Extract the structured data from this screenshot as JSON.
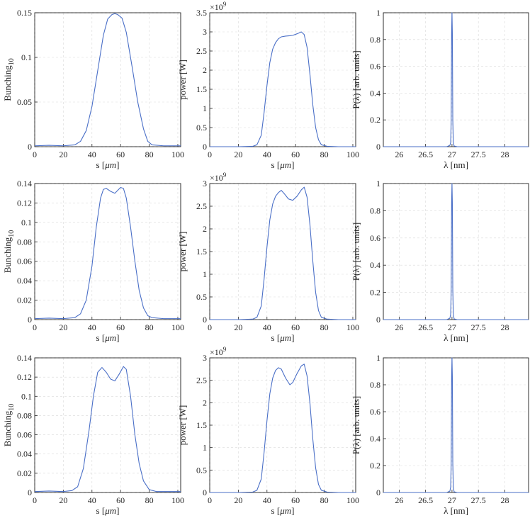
{
  "chart_data": [
    {
      "type": "line",
      "row": 0,
      "col": 0,
      "xlabel_prefix": "s [",
      "xlabel_unit": "μm",
      "xlabel_suffix": "]",
      "ylabel_base": "Bunching",
      "ylabel_sub": "10",
      "xlim": [
        0,
        102
      ],
      "ylim": [
        0,
        0.15
      ],
      "xticks": [
        0,
        20,
        40,
        60,
        80,
        100
      ],
      "yticks": [
        0,
        0.05,
        0.1,
        0.15
      ],
      "yticklabels": [
        "0",
        "0.05",
        "0.1",
        "0.15"
      ],
      "exponent": "",
      "grid": true,
      "series": [
        {
          "x": [
            0,
            10,
            20,
            28,
            32,
            36,
            40,
            44,
            48,
            51,
            54,
            56,
            58,
            61,
            64,
            68,
            72,
            76,
            79,
            82,
            90,
            102
          ],
          "y": [
            0.001,
            0.0015,
            0.001,
            0.002,
            0.006,
            0.018,
            0.045,
            0.085,
            0.125,
            0.143,
            0.148,
            0.149,
            0.148,
            0.144,
            0.128,
            0.09,
            0.05,
            0.02,
            0.006,
            0.002,
            0.001,
            0.001
          ]
        }
      ]
    },
    {
      "type": "line",
      "row": 0,
      "col": 1,
      "xlabel_prefix": "s [",
      "xlabel_unit": "μm",
      "xlabel_suffix": "]",
      "ylabel_base": "power [W]",
      "ylabel_sub": "",
      "xlim": [
        0,
        102
      ],
      "ylim": [
        0,
        3.5
      ],
      "xticks": [
        0,
        20,
        40,
        60,
        80,
        100
      ],
      "yticks": [
        0,
        0.5,
        1,
        1.5,
        2,
        2.5,
        3,
        3.5
      ],
      "yticklabels": [
        "0",
        "0.5",
        "1",
        "1.5",
        "2",
        "2.5",
        "3",
        "3.5"
      ],
      "exponent": "9",
      "grid": true,
      "series": [
        {
          "x": [
            0,
            10,
            20,
            30,
            33,
            36,
            38,
            40,
            42,
            44,
            46,
            48,
            50,
            53,
            56,
            58,
            61,
            64,
            66,
            68,
            70,
            72,
            74,
            76,
            78,
            82,
            90,
            102
          ],
          "y": [
            0,
            0,
            0,
            0.01,
            0.05,
            0.3,
            0.9,
            1.6,
            2.2,
            2.55,
            2.72,
            2.82,
            2.87,
            2.89,
            2.9,
            2.91,
            2.95,
            3.0,
            2.93,
            2.6,
            1.9,
            1.1,
            0.5,
            0.18,
            0.05,
            0.01,
            0,
            0
          ]
        }
      ]
    },
    {
      "type": "line",
      "row": 0,
      "col": 2,
      "xlabel_prefix": "λ [nm]",
      "xlabel_unit": "",
      "xlabel_suffix": "",
      "ylabel_base": "P(λ) [arb. units]",
      "ylabel_sub": "",
      "xlim": [
        25.7,
        28.45
      ],
      "ylim": [
        0,
        1
      ],
      "xticks": [
        26,
        26.5,
        27,
        27.5,
        28
      ],
      "yticks": [
        0,
        0.2,
        0.4,
        0.6,
        0.8,
        1
      ],
      "yticklabels": [
        "0",
        "0.2",
        "0.4",
        "0.6",
        "0.8",
        "1"
      ],
      "exponent": "",
      "grid": true,
      "series": [
        {
          "x": [
            25.7,
            26.9,
            26.96,
            26.975,
            26.985,
            26.993,
            27.0,
            27.007,
            27.015,
            27.025,
            27.04,
            27.1,
            28.45
          ],
          "y": [
            0,
            0,
            0.01,
            0.03,
            0.2,
            0.85,
            1.0,
            0.85,
            0.2,
            0.03,
            0.005,
            0,
            0
          ]
        }
      ]
    },
    {
      "type": "line",
      "row": 1,
      "col": 0,
      "xlabel_prefix": "s [",
      "xlabel_unit": "μm",
      "xlabel_suffix": "]",
      "ylabel_base": "Bunching",
      "ylabel_sub": "10",
      "xlim": [
        0,
        102
      ],
      "ylim": [
        0,
        0.14
      ],
      "xticks": [
        0,
        20,
        40,
        60,
        80,
        100
      ],
      "yticks": [
        0,
        0.02,
        0.04,
        0.06,
        0.08,
        0.1,
        0.12,
        0.14
      ],
      "yticklabels": [
        "0",
        "0.02",
        "0.04",
        "0.06",
        "0.08",
        "0.1",
        "0.12",
        "0.14"
      ],
      "exponent": "",
      "grid": true,
      "series": [
        {
          "x": [
            0,
            10,
            20,
            28,
            32,
            36,
            40,
            43,
            46,
            48,
            50,
            53,
            56,
            58,
            60,
            62,
            64,
            67,
            70,
            73,
            76,
            79,
            82,
            90,
            102
          ],
          "y": [
            0.001,
            0.0015,
            0.001,
            0.002,
            0.006,
            0.02,
            0.055,
            0.095,
            0.125,
            0.134,
            0.135,
            0.132,
            0.13,
            0.133,
            0.136,
            0.135,
            0.125,
            0.095,
            0.06,
            0.03,
            0.012,
            0.004,
            0.002,
            0.001,
            0.001
          ]
        }
      ]
    },
    {
      "type": "line",
      "row": 1,
      "col": 1,
      "xlabel_prefix": "s [",
      "xlabel_unit": "μm",
      "xlabel_suffix": "]",
      "ylabel_base": "power [W]",
      "ylabel_sub": "",
      "xlim": [
        0,
        102
      ],
      "ylim": [
        0,
        3
      ],
      "xticks": [
        0,
        20,
        40,
        60,
        80,
        100
      ],
      "yticks": [
        0,
        0.5,
        1,
        1.5,
        2,
        2.5,
        3
      ],
      "yticklabels": [
        "0",
        "0.5",
        "1",
        "1.5",
        "2",
        "2.5",
        "3"
      ],
      "exponent": "9",
      "grid": true,
      "series": [
        {
          "x": [
            0,
            10,
            20,
            30,
            33,
            36,
            38,
            40,
            42,
            44,
            46,
            48,
            50,
            52,
            55,
            58,
            61,
            64,
            66,
            68,
            70,
            72,
            74,
            76,
            78,
            82,
            90,
            102
          ],
          "y": [
            0,
            0,
            0,
            0.01,
            0.05,
            0.3,
            0.9,
            1.6,
            2.2,
            2.55,
            2.72,
            2.8,
            2.85,
            2.78,
            2.66,
            2.63,
            2.72,
            2.86,
            2.92,
            2.7,
            2.1,
            1.3,
            0.6,
            0.2,
            0.05,
            0.01,
            0,
            0
          ]
        }
      ]
    },
    {
      "type": "line",
      "row": 1,
      "col": 2,
      "xlabel_prefix": "λ [nm]",
      "xlabel_unit": "",
      "xlabel_suffix": "",
      "ylabel_base": "P(λ) [arb. units]",
      "ylabel_sub": "",
      "xlim": [
        25.7,
        28.45
      ],
      "ylim": [
        0,
        1
      ],
      "xticks": [
        26,
        26.5,
        27,
        27.5,
        28
      ],
      "yticks": [
        0,
        0.2,
        0.4,
        0.6,
        0.8,
        1
      ],
      "yticklabels": [
        "0",
        "0.2",
        "0.4",
        "0.6",
        "0.8",
        "1"
      ],
      "exponent": "",
      "grid": true,
      "series": [
        {
          "x": [
            25.7,
            26.9,
            26.96,
            26.975,
            26.985,
            26.993,
            27.0,
            27.007,
            27.015,
            27.025,
            27.04,
            27.1,
            28.45
          ],
          "y": [
            0,
            0,
            0.01,
            0.04,
            0.22,
            0.86,
            1.0,
            0.86,
            0.22,
            0.04,
            0.005,
            0,
            0
          ]
        }
      ]
    },
    {
      "type": "line",
      "row": 2,
      "col": 0,
      "xlabel_prefix": "s [",
      "xlabel_unit": "μm",
      "xlabel_suffix": "]",
      "ylabel_base": "Bunching",
      "ylabel_sub": "10",
      "xlim": [
        0,
        102
      ],
      "ylim": [
        0,
        0.14
      ],
      "xticks": [
        0,
        20,
        40,
        60,
        80,
        100
      ],
      "yticks": [
        0,
        0.02,
        0.04,
        0.06,
        0.08,
        0.1,
        0.12,
        0.14
      ],
      "yticklabels": [
        "0",
        "0.02",
        "0.04",
        "0.06",
        "0.08",
        "0.1",
        "0.12",
        "0.14"
      ],
      "exponent": "",
      "grid": true,
      "series": [
        {
          "x": [
            0,
            10,
            20,
            26,
            30,
            34,
            38,
            41,
            44,
            47,
            50,
            53,
            56,
            59,
            62,
            64,
            67,
            70,
            73,
            76,
            80,
            85,
            90,
            102
          ],
          "y": [
            0.001,
            0.0015,
            0.001,
            0.002,
            0.006,
            0.025,
            0.065,
            0.1,
            0.125,
            0.13,
            0.125,
            0.118,
            0.116,
            0.123,
            0.131,
            0.128,
            0.1,
            0.06,
            0.03,
            0.012,
            0.003,
            0.001,
            0.001,
            0.001
          ]
        }
      ]
    },
    {
      "type": "line",
      "row": 2,
      "col": 1,
      "xlabel_prefix": "s [",
      "xlabel_unit": "μm",
      "xlabel_suffix": "]",
      "ylabel_base": "power [W]",
      "ylabel_sub": "",
      "xlim": [
        0,
        102
      ],
      "ylim": [
        0,
        3
      ],
      "xticks": [
        0,
        20,
        40,
        60,
        80,
        100
      ],
      "yticks": [
        0,
        0.5,
        1,
        1.5,
        2,
        2.5,
        3
      ],
      "yticklabels": [
        "0",
        "0.5",
        "1",
        "1.5",
        "2",
        "2.5",
        "3"
      ],
      "exponent": "9",
      "grid": true,
      "series": [
        {
          "x": [
            0,
            10,
            20,
            30,
            33,
            36,
            38,
            40,
            42,
            44,
            46,
            48,
            50,
            53,
            56,
            58,
            61,
            64,
            66,
            68,
            70,
            72,
            74,
            76,
            78,
            82,
            90,
            102
          ],
          "y": [
            0,
            0,
            0,
            0.01,
            0.05,
            0.3,
            0.9,
            1.6,
            2.2,
            2.55,
            2.72,
            2.78,
            2.75,
            2.55,
            2.4,
            2.45,
            2.65,
            2.82,
            2.86,
            2.6,
            2.0,
            1.2,
            0.55,
            0.18,
            0.05,
            0.01,
            0,
            0
          ]
        }
      ]
    },
    {
      "type": "line",
      "row": 2,
      "col": 2,
      "xlabel_prefix": "λ [nm]",
      "xlabel_unit": "",
      "xlabel_suffix": "",
      "ylabel_base": "P(λ) [arb. units]",
      "ylabel_sub": "",
      "xlim": [
        25.7,
        28.45
      ],
      "ylim": [
        0,
        1
      ],
      "xticks": [
        26,
        26.5,
        27,
        27.5,
        28
      ],
      "yticks": [
        0,
        0.2,
        0.4,
        0.6,
        0.8,
        1
      ],
      "yticklabels": [
        "0",
        "0.2",
        "0.4",
        "0.6",
        "0.8",
        "1"
      ],
      "exponent": "",
      "grid": true,
      "series": [
        {
          "x": [
            25.7,
            26.9,
            26.96,
            26.975,
            26.985,
            26.993,
            27.0,
            27.007,
            27.015,
            27.025,
            27.04,
            27.1,
            28.45
          ],
          "y": [
            0,
            0,
            0.01,
            0.04,
            0.22,
            0.86,
            1.0,
            0.86,
            0.22,
            0.04,
            0.005,
            0,
            0
          ]
        }
      ]
    }
  ],
  "colors": {
    "line": "#4a6fc7",
    "grid": "#d9d9d9",
    "axis": "#262626"
  }
}
